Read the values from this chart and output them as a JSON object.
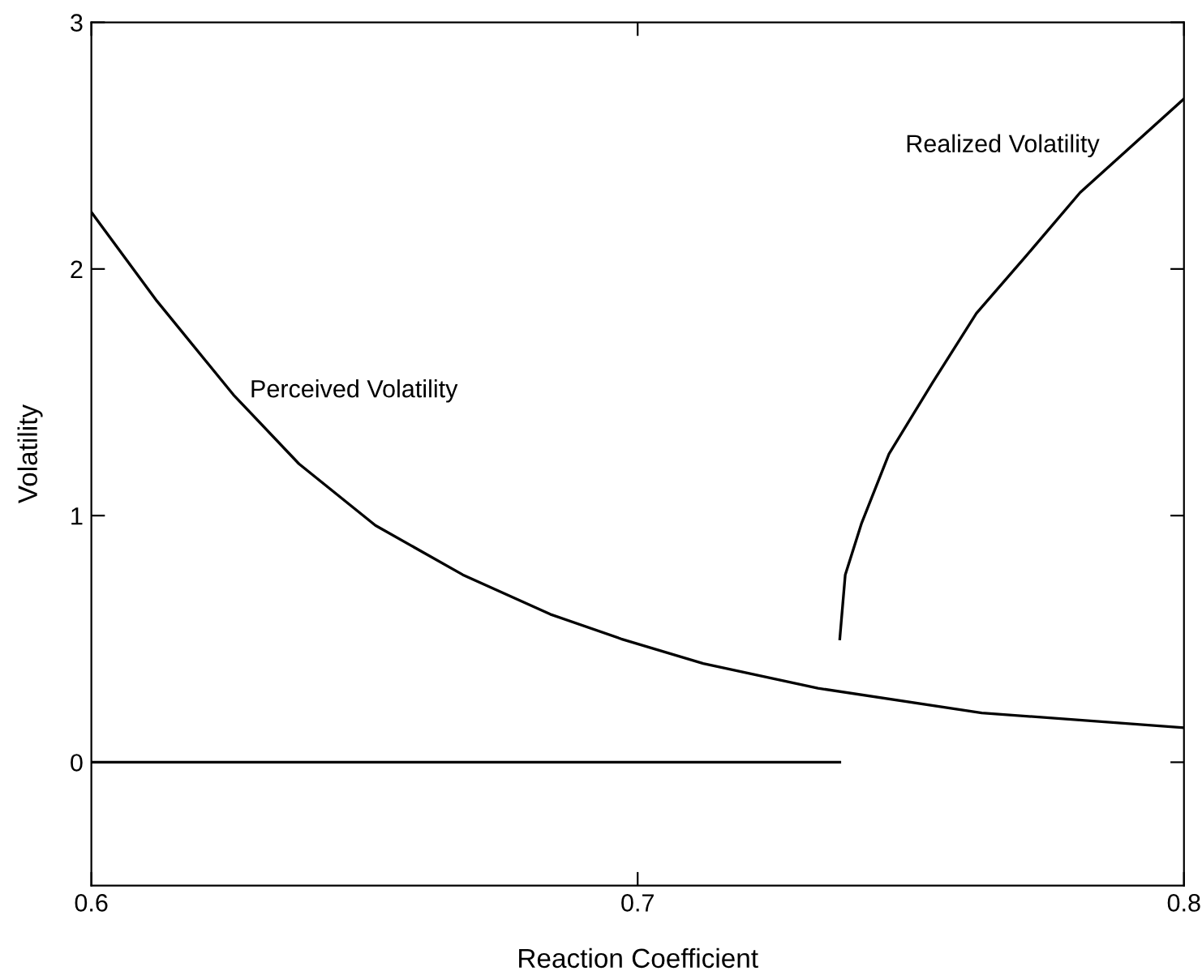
{
  "chart_data": {
    "type": "line",
    "xlabel": "Reaction Coefficient",
    "ylabel": "Volatility",
    "xlim": [
      0.6,
      0.8
    ],
    "xticks": [
      0.6,
      0.7,
      0.8
    ],
    "ylim": [
      -0.5,
      3
    ],
    "yticks": [
      0,
      1,
      2,
      3
    ],
    "grid": false,
    "series": [
      {
        "color": "#000000",
        "x": [
          0.6,
          0.612,
          0.626,
          0.638,
          0.652,
          0.668,
          0.684,
          0.697,
          0.712,
          0.733,
          0.763,
          0.8
        ],
        "values": [
          2.23,
          1.87,
          1.49,
          1.21,
          0.96,
          0.76,
          0.6,
          0.5,
          0.4,
          0.3,
          0.2,
          0.14
        ]
      },
      {
        "color": "#000000",
        "x": [
          0.737,
          0.738,
          0.741,
          0.746,
          0.754,
          0.762,
          0.771,
          0.781,
          0.8
        ],
        "values": [
          0.5,
          0.76,
          0.97,
          1.25,
          1.54,
          1.82,
          2.05,
          2.31,
          2.69
        ]
      },
      {
        "color": "#000000",
        "x": [
          0.6,
          0.737
        ],
        "values": [
          0,
          0
        ]
      }
    ],
    "annotations": [
      "Perceived Volatility",
      "Realized Volatility"
    ]
  }
}
